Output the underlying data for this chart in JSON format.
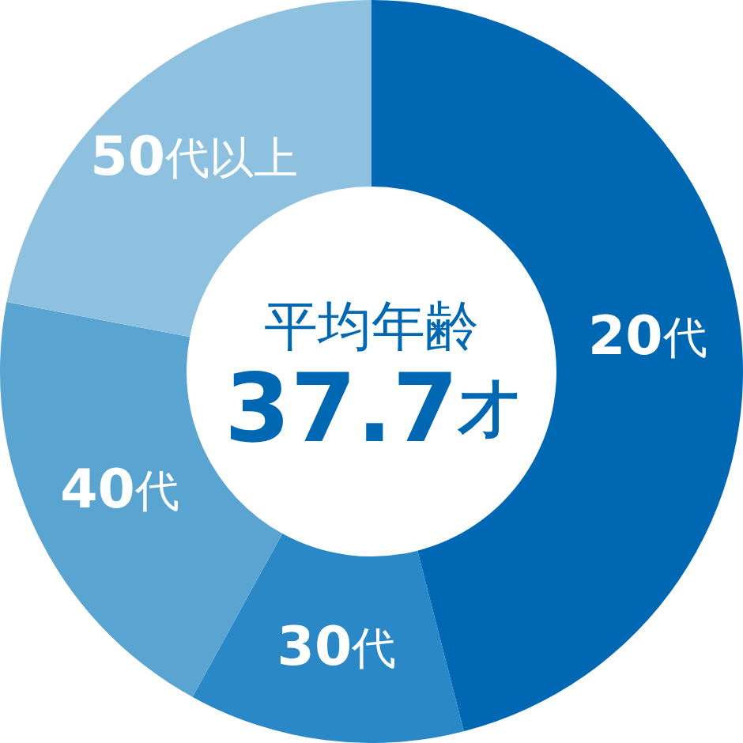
{
  "chart_data": {
    "type": "donut",
    "title": "平均年齢",
    "annotations": [
      "37.7才"
    ],
    "categories": [
      "20代",
      "30代",
      "40代",
      "50代以上"
    ],
    "values": [
      46,
      12,
      20,
      22
    ],
    "colors": [
      "#0068b3",
      "#2a88c6",
      "#5aa4d2",
      "#8ec0df"
    ]
  }
}
